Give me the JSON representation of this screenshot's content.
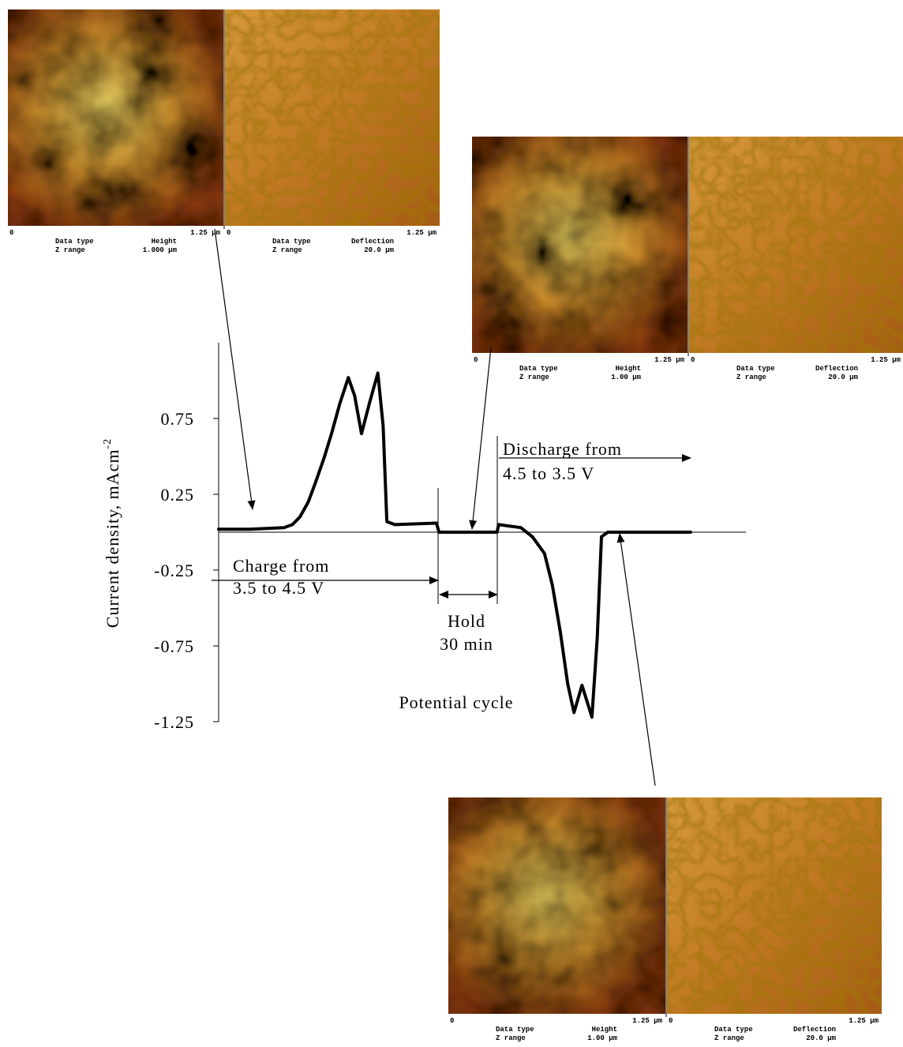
{
  "chart_data": {
    "type": "line",
    "ylabel": "Current density, mAcm",
    "ylabel_sup": "-2",
    "xlabel": "Potential cycle",
    "color": "#000000",
    "x": [
      0,
      6,
      12.4,
      14,
      15.4,
      17,
      18.4,
      20,
      21.4,
      23,
      24.6,
      25.8,
      27.1,
      28.6,
      30.2,
      31.2,
      31.9,
      33.4,
      41.3,
      41.8,
      52.8,
      53.1,
      57.3,
      59.5,
      61.8,
      63.3,
      64.8,
      66.2,
      67.4,
      68.9,
      70.8,
      71.8,
      72.6,
      73.8,
      89.5
    ],
    "values": [
      0.02,
      0.02,
      0.03,
      0.05,
      0.1,
      0.2,
      0.33,
      0.49,
      0.65,
      0.85,
      1.02,
      0.9,
      0.65,
      0.85,
      1.05,
      0.7,
      0.07,
      0.05,
      0.06,
      0.0,
      0.0,
      0.05,
      0.03,
      -0.03,
      -0.14,
      -0.35,
      -0.66,
      -1.0,
      -1.19,
      -1.01,
      -1.22,
      -0.7,
      -0.03,
      0.0,
      0.0
    ],
    "xlim": [
      0,
      100
    ],
    "ylim": [
      -1.25,
      1.25
    ],
    "yticks": [
      0.75,
      0.25,
      -0.25,
      -0.75,
      -1.25
    ],
    "annotations": {
      "charge_1": "Charge from",
      "charge_2": "3.5 to 4.5 V",
      "hold_1": "Hold",
      "hold_2": "30 min",
      "discharge_1": "Discharge from",
      "discharge_2": "4.5 to 3.5 V"
    }
  },
  "images": [
    {
      "panels": [
        {
          "start": "0",
          "end": "1.25 µm",
          "data_type_label": "Data type",
          "data_type": "Height",
          "z_range_label": "Z range",
          "z_range": "1.000 µm"
        },
        {
          "start": "0",
          "end": "1.25 µm",
          "data_type_label": "Data type",
          "data_type": "Deflection",
          "z_range_label": "Z range",
          "z_range": "20.0 µm"
        }
      ]
    },
    {
      "panels": [
        {
          "start": "0",
          "end": "1.25 µm",
          "data_type_label": "Data type",
          "data_type": "Height",
          "z_range_label": "Z range",
          "z_range": "1.00 µm"
        },
        {
          "start": "0",
          "end": "1.25 µm",
          "data_type_label": "Data type",
          "data_type": "Deflection",
          "z_range_label": "Z range",
          "z_range": "20.0 µm"
        }
      ]
    },
    {
      "panels": [
        {
          "start": "0",
          "end": "1.25 µm",
          "data_type_label": "Data type",
          "data_type": "Height",
          "z_range_label": "Z range",
          "z_range": "1.00 µm"
        },
        {
          "start": "0",
          "end": "1.25 µm",
          "data_type_label": "Data type",
          "data_type": "Deflection",
          "z_range_label": "Z range",
          "z_range": "20.0 µm"
        }
      ]
    }
  ]
}
